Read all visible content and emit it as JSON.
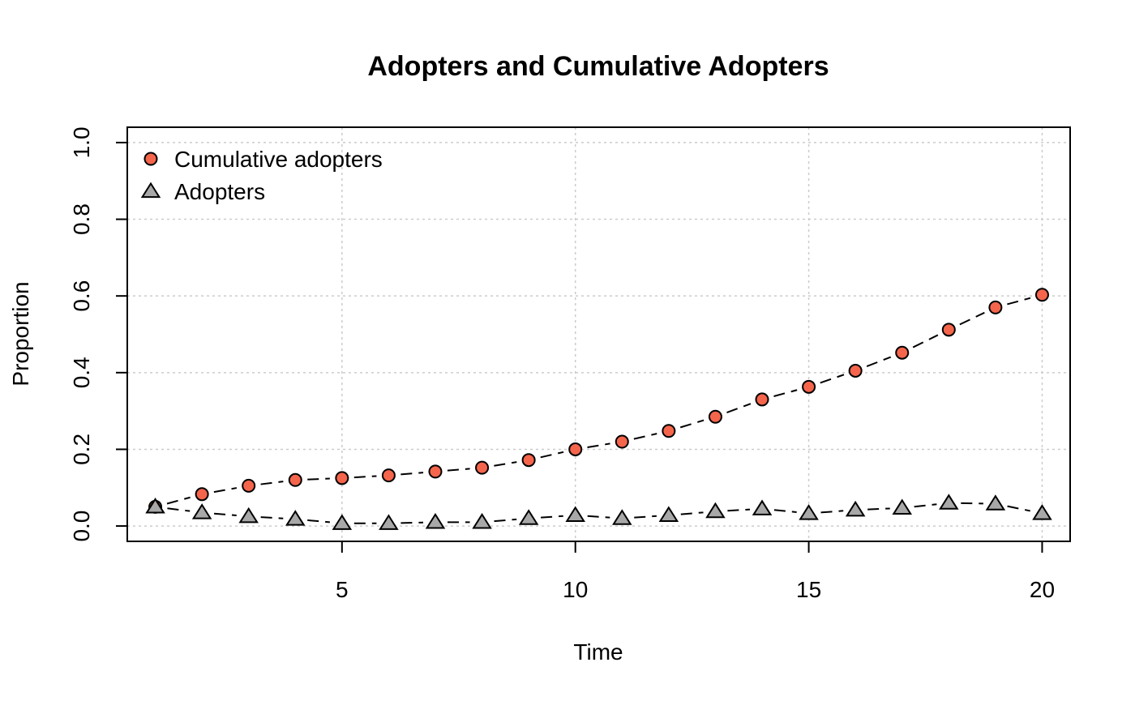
{
  "chart_data": {
    "type": "line",
    "title": "Adopters and Cumulative Adopters",
    "xlabel": "Time",
    "ylabel": "Proportion",
    "xlim": [
      0.4,
      20.6
    ],
    "ylim": [
      -0.04,
      1.04
    ],
    "xticks": [
      5,
      10,
      15,
      20
    ],
    "yticks": [
      0.0,
      0.2,
      0.4,
      0.6,
      0.8,
      1.0
    ],
    "xtick_labels": [
      "5",
      "10",
      "15",
      "20"
    ],
    "ytick_labels": [
      "0.0",
      "0.2",
      "0.4",
      "0.6",
      "0.8",
      "1.0"
    ],
    "grid": true,
    "legend_position": "top-left",
    "x": [
      1,
      2,
      3,
      4,
      5,
      6,
      7,
      8,
      9,
      10,
      11,
      12,
      13,
      14,
      15,
      16,
      17,
      18,
      19,
      20
    ],
    "series": [
      {
        "name": "Cumulative adopters",
        "marker": "circle",
        "fill_color": "#f4654c",
        "values": [
          0.05,
          0.083,
          0.105,
          0.12,
          0.125,
          0.132,
          0.142,
          0.152,
          0.172,
          0.2,
          0.22,
          0.248,
          0.285,
          0.33,
          0.363,
          0.405,
          0.452,
          0.512,
          0.57,
          0.603
        ]
      },
      {
        "name": "Adopters",
        "marker": "triangle",
        "fill_color": "#a8a8a8",
        "values": [
          0.05,
          0.035,
          0.025,
          0.018,
          0.007,
          0.007,
          0.01,
          0.01,
          0.02,
          0.028,
          0.02,
          0.028,
          0.038,
          0.045,
          0.033,
          0.042,
          0.047,
          0.06,
          0.058,
          0.033
        ]
      }
    ],
    "grid_color": "#cccccc",
    "line_color": "#000000"
  }
}
